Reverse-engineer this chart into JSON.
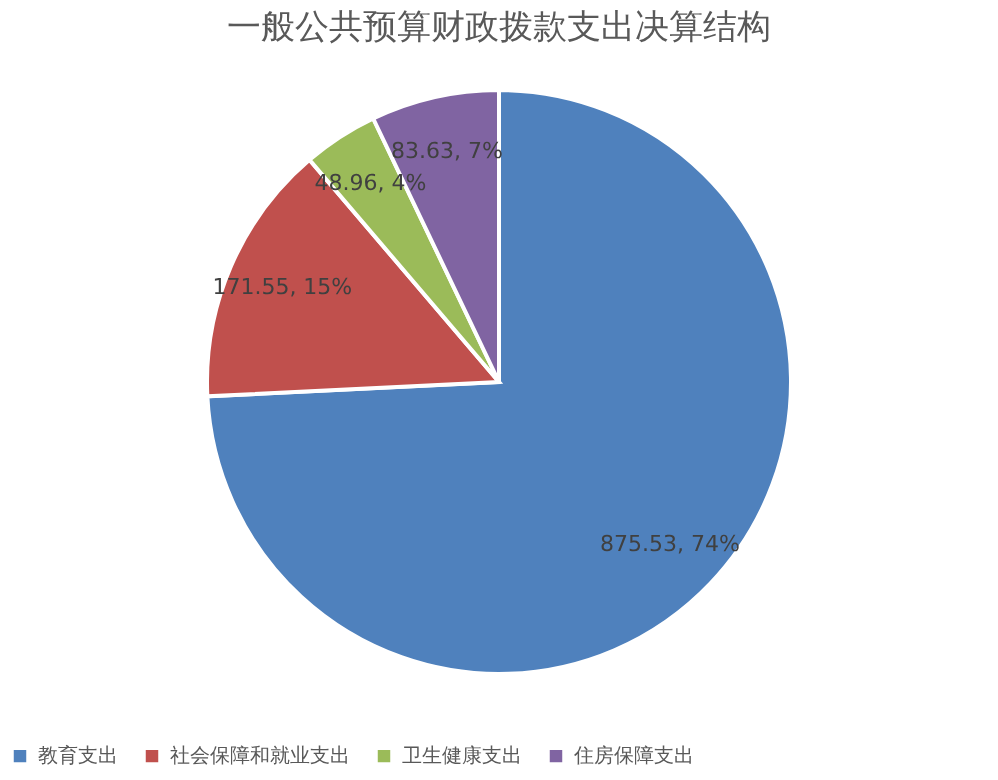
{
  "chart_data": {
    "type": "pie",
    "title": "一般公共预算财政拨款支出决算结构",
    "categories": [
      "教育支出",
      "社会保障和就业支出",
      "卫生健康支出",
      "住房保障支出"
    ],
    "values": [
      875.53,
      171.55,
      48.96,
      83.63
    ],
    "colors": [
      "#4f81bd",
      "#c0504d",
      "#9bbb59",
      "#8064a2"
    ],
    "value_labels": [
      "875.53, 74%",
      "171.55, 15%",
      "48.96, 4%",
      "83.63, 7%"
    ],
    "legend": "bottom"
  }
}
